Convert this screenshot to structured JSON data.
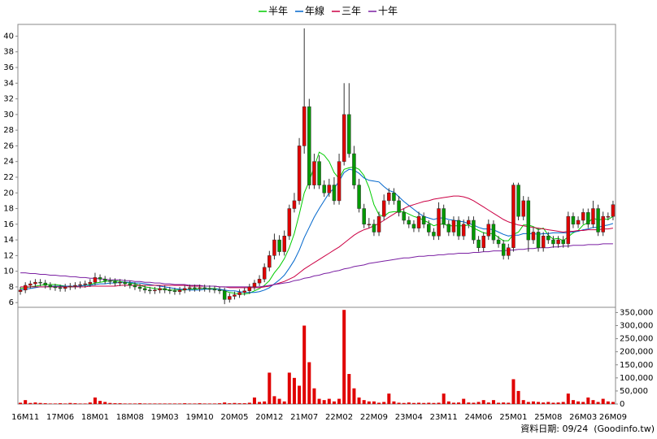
{
  "chart_data": [
    {
      "type": "candlestick",
      "up_color": "#e00000",
      "down_color": "#009900",
      "ylim": [
        5.4,
        41.5
      ],
      "yticks": [
        6,
        8,
        10,
        12,
        14,
        16,
        18,
        20,
        22,
        24,
        26,
        28,
        30,
        32,
        34,
        36,
        38,
        40
      ],
      "open": [
        7.4,
        7.6,
        8.2,
        8.4,
        8.6,
        8.5,
        8.2,
        8.0,
        7.9,
        7.8,
        8.0,
        8.1,
        8.2,
        8.3,
        8.4,
        8.6,
        9.2,
        9.0,
        8.8,
        8.7,
        8.5,
        8.6,
        8.4,
        8.2,
        8.0,
        7.8,
        7.6,
        7.5,
        7.6,
        7.8,
        7.6,
        7.5,
        7.4,
        7.6,
        7.8,
        7.9,
        7.8,
        7.9,
        7.8,
        7.7,
        7.6,
        7.5,
        6.4,
        6.8,
        7.0,
        7.3,
        7.5,
        8.0,
        8.5,
        9.0,
        10.5,
        12,
        14,
        12.5,
        14.5,
        18,
        19,
        26,
        31,
        21,
        24,
        21,
        20,
        21,
        19,
        24,
        30,
        25,
        21,
        18,
        16,
        16,
        15,
        17,
        19,
        20,
        19,
        17.5,
        16.5,
        16,
        15.5,
        17,
        16,
        15,
        14.5,
        18,
        16,
        15,
        16.5,
        14.5,
        16,
        16.5,
        14,
        13,
        14.5,
        16,
        14,
        13.5,
        12,
        13,
        21,
        17,
        19,
        14,
        15,
        13,
        14.5,
        14,
        13.5,
        14,
        13.5,
        17,
        16,
        16.5,
        17.5,
        16,
        18,
        15,
        17,
        17
      ],
      "high": [
        8.0,
        8.6,
        8.8,
        9.0,
        9.0,
        8.9,
        8.6,
        8.4,
        8.3,
        8.4,
        8.5,
        8.6,
        8.7,
        8.8,
        9.0,
        9.8,
        9.6,
        9.4,
        9.2,
        9.1,
        9.0,
        9.0,
        8.8,
        8.6,
        8.4,
        8.2,
        8.0,
        8.0,
        8.2,
        8.2,
        8.0,
        7.9,
        8.0,
        8.2,
        8.3,
        8.3,
        8.3,
        8.3,
        8.2,
        8.1,
        8.0,
        7.9,
        7.2,
        7.4,
        7.7,
        7.9,
        8.4,
        8.9,
        9.5,
        11.0,
        12.6,
        14.8,
        14.6,
        15.2,
        18.5,
        20,
        27,
        41,
        32,
        25,
        24.8,
        21.6,
        21.8,
        22,
        25,
        34,
        34,
        26,
        21.8,
        18.6,
        16.8,
        16.6,
        17.6,
        19.8,
        20.6,
        20.6,
        19.6,
        18,
        17,
        16.5,
        17.6,
        17.5,
        16.5,
        15.5,
        18.8,
        18.5,
        16.5,
        17,
        17,
        16.6,
        17,
        17,
        14.5,
        15,
        16.6,
        16.5,
        14.5,
        14,
        13.5,
        21.3,
        21.3,
        19.6,
        19.5,
        15.6,
        15.5,
        15,
        15,
        14.5,
        14.5,
        14.5,
        17.6,
        17.5,
        17,
        18,
        18,
        19,
        18.5,
        17.6,
        17.5,
        19
      ],
      "low": [
        7.0,
        7.2,
        7.8,
        8.0,
        8.1,
        7.8,
        7.6,
        7.5,
        7.4,
        7.4,
        7.6,
        7.7,
        7.8,
        7.9,
        8.0,
        8.2,
        8.6,
        8.4,
        8.3,
        8.1,
        8.1,
        8.0,
        7.8,
        7.6,
        7.4,
        7.2,
        7.1,
        7.1,
        7.2,
        7.2,
        7.1,
        7.0,
        7.0,
        7.2,
        7.4,
        7.4,
        7.4,
        7.4,
        7.3,
        7.2,
        7.1,
        5.8,
        6.0,
        6.4,
        6.6,
        6.9,
        7.1,
        7.6,
        8.1,
        8.6,
        10.0,
        11.5,
        12.0,
        12.0,
        14.0,
        17.5,
        18.5,
        25,
        20.5,
        20.5,
        20.5,
        19.5,
        19.5,
        18.5,
        18.5,
        23.5,
        24.5,
        20.5,
        17.5,
        15.5,
        15.5,
        14.5,
        14.5,
        16.5,
        18.5,
        18.5,
        17,
        16,
        15.5,
        15,
        15,
        15.5,
        14.5,
        14,
        14,
        15.5,
        14.5,
        14.5,
        14,
        14,
        15.5,
        13.5,
        12.5,
        12.5,
        14,
        13.5,
        13,
        11.5,
        11.5,
        12.5,
        16.5,
        16.5,
        12.5,
        13.5,
        12.5,
        12.5,
        13.5,
        13,
        13,
        13,
        13,
        15.5,
        15.5,
        16,
        15.5,
        15.5,
        14.5,
        14.5,
        16.5,
        16.5
      ],
      "close": [
        7.6,
        8.2,
        8.4,
        8.6,
        8.5,
        8.2,
        8.0,
        7.9,
        7.8,
        8.0,
        8.1,
        8.2,
        8.3,
        8.4,
        8.6,
        9.2,
        9.0,
        8.8,
        8.7,
        8.5,
        8.6,
        8.4,
        8.2,
        8.0,
        7.8,
        7.6,
        7.5,
        7.6,
        7.8,
        7.6,
        7.5,
        7.4,
        7.6,
        7.8,
        7.9,
        7.8,
        7.9,
        7.8,
        7.7,
        7.6,
        7.5,
        6.4,
        6.8,
        7.0,
        7.3,
        7.5,
        8.0,
        8.5,
        9.0,
        10.5,
        12,
        14,
        12.5,
        14.5,
        18,
        19,
        26,
        31,
        21,
        24,
        21,
        20,
        21,
        19,
        24,
        30,
        25,
        21,
        18,
        16,
        16,
        15,
        17,
        19,
        20,
        19,
        17.5,
        16.5,
        16,
        15.5,
        17,
        16,
        15,
        14.5,
        18,
        16,
        15,
        16.5,
        14.5,
        16,
        16.5,
        14,
        13,
        14.5,
        16,
        14,
        13.5,
        12,
        13,
        21,
        17,
        19,
        14,
        15,
        13,
        14.5,
        14,
        13.5,
        14,
        13.5,
        17,
        16,
        16.5,
        17.5,
        16,
        18,
        15,
        17,
        17,
        18.5
      ],
      "series": [
        {
          "name": "半年",
          "color": "#00cc00",
          "values": [
            7.8,
            7.9,
            8.0,
            8.1,
            8.2,
            8.3,
            8.3,
            8.3,
            8.2,
            8.1,
            8.0,
            8.0,
            8.1,
            8.2,
            8.3,
            8.5,
            8.6,
            8.7,
            8.8,
            8.8,
            8.7,
            8.6,
            8.5,
            8.4,
            8.2,
            8.0,
            7.9,
            7.8,
            7.7,
            7.7,
            7.6,
            7.6,
            7.6,
            7.6,
            7.7,
            7.7,
            7.8,
            7.8,
            7.8,
            7.8,
            7.7,
            7.5,
            7.3,
            7.2,
            7.1,
            7.1,
            7.2,
            7.5,
            7.8,
            8.2,
            8.8,
            9.8,
            10.6,
            11.6,
            13.0,
            14.8,
            17.3,
            20.0,
            21.5,
            23.3,
            25.2,
            24.8,
            24.0,
            22.6,
            21.8,
            23.0,
            23.2,
            23.3,
            23.0,
            22.2,
            20.7,
            18.5,
            17.2,
            17.0,
            17.5,
            17.6,
            17.6,
            17.6,
            17.3,
            17.0,
            16.8,
            16.5,
            16.2,
            15.8,
            16.0,
            16.0,
            15.8,
            15.8,
            15.8,
            15.8,
            15.9,
            15.5,
            15.2,
            14.9,
            14.8,
            14.8,
            14.3,
            13.9,
            13.9,
            14.7,
            15.0,
            15.9,
            15.9,
            15.7,
            15.3,
            15.5,
            14.6,
            14.1,
            14.2,
            13.9,
            14.4,
            14.9,
            15.2,
            15.9,
            16.2,
            16.8,
            16.5,
            16.7,
            16.6,
            17.0
          ]
        },
        {
          "name": "年線",
          "color": "#0066cc",
          "values": [
            7.6,
            7.7,
            7.8,
            7.9,
            8.0,
            8.0,
            8.1,
            8.1,
            8.1,
            8.1,
            8.1,
            8.1,
            8.1,
            8.2,
            8.2,
            8.3,
            8.4,
            8.4,
            8.5,
            8.5,
            8.6,
            8.6,
            8.6,
            8.5,
            8.5,
            8.4,
            8.3,
            8.2,
            8.1,
            8.0,
            7.9,
            7.8,
            7.7,
            7.7,
            7.6,
            7.6,
            7.6,
            7.7,
            7.7,
            7.7,
            7.7,
            7.6,
            7.5,
            7.5,
            7.4,
            7.3,
            7.3,
            7.3,
            7.4,
            7.6,
            7.9,
            8.4,
            8.9,
            9.5,
            10.4,
            11.4,
            12.7,
            14.3,
            15.6,
            16.9,
            18.0,
            19.0,
            20.0,
            20.6,
            21.5,
            22.6,
            23.0,
            22.9,
            22.5,
            21.9,
            21.6,
            21.5,
            21.4,
            20.8,
            20.3,
            20.1,
            19.5,
            18.9,
            18.4,
            17.9,
            17.4,
            17.0,
            16.8,
            16.6,
            16.8,
            16.8,
            16.6,
            16.5,
            16.4,
            16.3,
            16.1,
            15.9,
            15.6,
            15.4,
            15.4,
            15.3,
            15.0,
            14.7,
            14.5,
            14.6,
            14.6,
            14.8,
            14.8,
            14.8,
            14.7,
            14.8,
            14.8,
            14.9,
            14.9,
            14.9,
            14.9,
            15.0,
            15.1,
            15.3,
            15.4,
            15.6,
            15.6,
            15.8,
            15.9,
            16.1
          ]
        },
        {
          "name": "三年",
          "color": "#cc0044",
          "values": [
            8.0,
            8.0,
            8.0,
            8.0,
            8.0,
            8.0,
            8.0,
            8.0,
            8.0,
            8.0,
            8.0,
            8.0,
            8.0,
            8.0,
            8.1,
            8.1,
            8.1,
            8.1,
            8.1,
            8.1,
            8.2,
            8.2,
            8.2,
            8.2,
            8.2,
            8.2,
            8.2,
            8.2,
            8.2,
            8.2,
            8.2,
            8.2,
            8.2,
            8.2,
            8.1,
            8.1,
            8.1,
            8.1,
            8.1,
            8.1,
            8.0,
            8.0,
            7.9,
            7.9,
            7.9,
            7.9,
            7.9,
            7.9,
            7.9,
            8.0,
            8.1,
            8.3,
            8.5,
            8.7,
            9.0,
            9.3,
            9.8,
            10.3,
            10.7,
            11.1,
            11.5,
            11.9,
            12.3,
            12.7,
            13.1,
            13.6,
            14.1,
            14.6,
            15.0,
            15.3,
            15.5,
            15.8,
            16.1,
            16.5,
            16.9,
            17.3,
            17.7,
            18.0,
            18.3,
            18.5,
            18.7,
            18.9,
            19.0,
            19.2,
            19.3,
            19.4,
            19.5,
            19.6,
            19.6,
            19.5,
            19.3,
            19.0,
            18.6,
            18.2,
            17.8,
            17.4,
            17.0,
            16.6,
            16.3,
            16.1,
            15.9,
            15.8,
            15.7,
            15.6,
            15.5,
            15.4,
            15.3,
            15.2,
            15.1,
            15.0,
            15.1,
            15.1,
            15.2,
            15.2,
            15.3,
            15.3,
            15.3,
            15.4,
            15.4,
            15.5
          ]
        },
        {
          "name": "十年",
          "color": "#7a1fa2",
          "values": [
            9.8,
            9.8,
            9.7,
            9.7,
            9.6,
            9.6,
            9.5,
            9.5,
            9.4,
            9.4,
            9.3,
            9.3,
            9.2,
            9.2,
            9.1,
            9.1,
            9.0,
            9.0,
            8.9,
            8.9,
            8.9,
            8.8,
            8.8,
            8.7,
            8.7,
            8.6,
            8.6,
            8.5,
            8.5,
            8.4,
            8.4,
            8.3,
            8.3,
            8.3,
            8.2,
            8.2,
            8.2,
            8.1,
            8.1,
            8.1,
            8.0,
            8.0,
            8.0,
            8.0,
            8.0,
            8.0,
            8.0,
            8.0,
            8.0,
            8.1,
            8.2,
            8.3,
            8.4,
            8.5,
            8.6,
            8.8,
            8.9,
            9.1,
            9.2,
            9.4,
            9.5,
            9.7,
            9.8,
            10.0,
            10.1,
            10.3,
            10.4,
            10.6,
            10.7,
            10.8,
            11.0,
            11.1,
            11.2,
            11.3,
            11.4,
            11.5,
            11.6,
            11.7,
            11.7,
            11.8,
            11.9,
            11.9,
            12.0,
            12.0,
            12.1,
            12.1,
            12.2,
            12.2,
            12.3,
            12.3,
            12.3,
            12.4,
            12.4,
            12.5,
            12.5,
            12.6,
            12.6,
            12.6,
            12.7,
            12.7,
            12.8,
            12.8,
            12.9,
            12.9,
            13.0,
            13.0,
            13.0,
            13.1,
            13.1,
            13.2,
            13.2,
            13.3,
            13.3,
            13.3,
            13.4,
            13.4,
            13.4,
            13.5,
            13.5,
            13.5
          ]
        }
      ]
    },
    {
      "type": "bar",
      "color": "#e00000",
      "ylim": [
        0,
        370000
      ],
      "yticks": [
        0,
        {
          "value": 50000,
          "label": "50,000"
        },
        {
          "value": 100000,
          "label": "100,000"
        },
        {
          "value": 150000,
          "label": "150,000"
        },
        {
          "value": 200000,
          "label": "200,000"
        },
        {
          "value": 250000,
          "label": "250,000"
        },
        {
          "value": 300000,
          "label": "300,000"
        },
        {
          "value": 350000,
          "label": "350,000"
        }
      ],
      "categories": [
        null,
        "16M11",
        null,
        null,
        null,
        null,
        null,
        null,
        "17M06",
        null,
        null,
        null,
        null,
        null,
        null,
        "18M01",
        null,
        null,
        null,
        null,
        null,
        null,
        "18M08",
        null,
        null,
        null,
        null,
        null,
        null,
        "19M03",
        null,
        null,
        null,
        null,
        null,
        null,
        "19M10",
        null,
        null,
        null,
        null,
        null,
        null,
        "20M05",
        null,
        null,
        null,
        null,
        null,
        null,
        "20M12",
        null,
        null,
        null,
        null,
        null,
        null,
        "21M07",
        null,
        null,
        null,
        null,
        null,
        null,
        "22M02",
        null,
        null,
        null,
        null,
        null,
        null,
        "22M09",
        null,
        null,
        null,
        null,
        null,
        null,
        "23M04",
        null,
        null,
        null,
        null,
        null,
        null,
        "23M11",
        null,
        null,
        null,
        null,
        null,
        null,
        "24M06",
        null,
        null,
        null,
        null,
        null,
        null,
        "25M01",
        null,
        null,
        null,
        null,
        null,
        null,
        "25M08",
        null,
        null,
        null,
        null,
        null,
        null,
        "26M03",
        null,
        null,
        null,
        null,
        null,
        "26M09"
      ],
      "values": [
        5000,
        15000,
        4000,
        6000,
        4000,
        3000,
        2000,
        2000,
        3000,
        2000,
        4000,
        3000,
        2000,
        2000,
        6000,
        25000,
        12000,
        8000,
        4000,
        3000,
        3000,
        2000,
        2000,
        2000,
        3000,
        2000,
        2000,
        2000,
        2000,
        2000,
        2000,
        2000,
        2000,
        3000,
        2000,
        2000,
        3000,
        2000,
        2000,
        2000,
        3000,
        6000,
        3000,
        4000,
        3000,
        3000,
        5000,
        25000,
        8000,
        10000,
        120000,
        30000,
        20000,
        10000,
        120000,
        100000,
        70000,
        300000,
        160000,
        60000,
        20000,
        15000,
        20000,
        10000,
        20000,
        360000,
        115000,
        60000,
        25000,
        15000,
        10000,
        10000,
        5000,
        8000,
        40000,
        10000,
        5000,
        4000,
        6000,
        4000,
        5000,
        4000,
        5000,
        4000,
        5000,
        40000,
        10000,
        5000,
        6000,
        20000,
        6000,
        5000,
        8000,
        15000,
        6000,
        15000,
        5000,
        6000,
        5000,
        95000,
        50000,
        15000,
        8000,
        10000,
        8000,
        6000,
        8000,
        5000,
        6000,
        8000,
        40000,
        15000,
        10000,
        8000,
        25000,
        15000,
        8000,
        20000,
        10000,
        8000
      ]
    }
  ],
  "footer": "資料日期: 09/24  (Goodinfo.tw)"
}
